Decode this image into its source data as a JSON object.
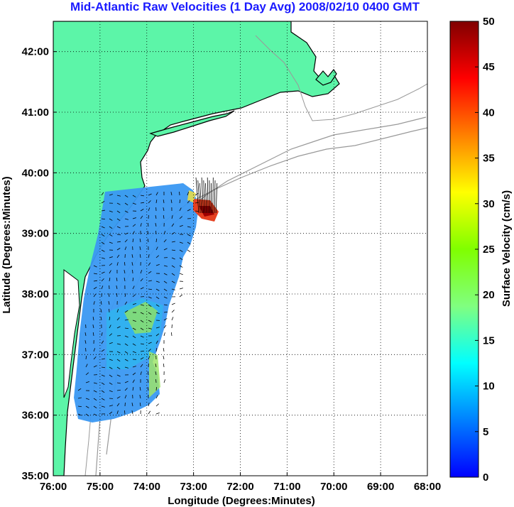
{
  "chart_data": {
    "type": "heatmap",
    "title": "Mid-Atlantic Raw Velocities (1 Day Avg) 2008/02/10 0400 GMT",
    "xlabel": "Longitude (Degrees:Minutes)",
    "ylabel": "Latitude (Degrees:Minutes)",
    "x_ticks": [
      "76:00",
      "75:00",
      "74:00",
      "73:00",
      "72:00",
      "71:00",
      "70:00",
      "69:00",
      "68:00"
    ],
    "y_ticks": [
      "35:00",
      "36:00",
      "37:00",
      "38:00",
      "39:00",
      "40:00",
      "41:00",
      "42:00"
    ],
    "xlim": [
      -76,
      -68
    ],
    "ylim": [
      35,
      42.5
    ],
    "grid": true,
    "colorbar": {
      "label": "Surface Velocity (cm/s)",
      "min": 0,
      "max": 50,
      "ticks": [
        "0",
        "5",
        "10",
        "15",
        "20",
        "25",
        "30",
        "35",
        "40",
        "45",
        "50"
      ],
      "colormap": "jet"
    },
    "land_color": "#5cf5a8",
    "coastline_color": "#000000",
    "bathymetry_color": "#999999"
  }
}
